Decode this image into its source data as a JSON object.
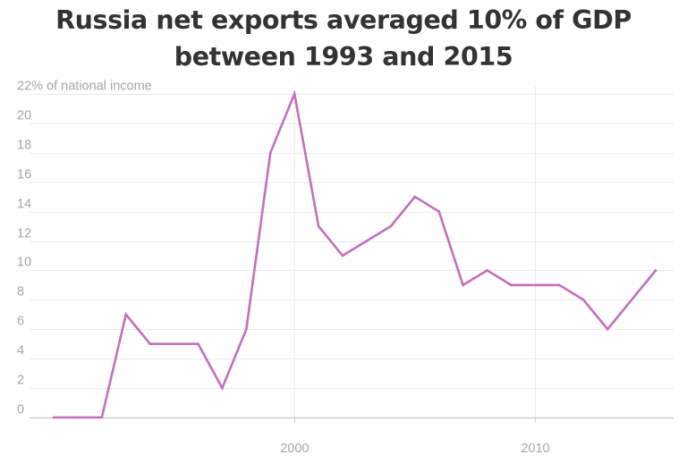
{
  "chart_data": {
    "type": "line",
    "title": "Russia net exports averaged 10% of GDP between 1993 and 2015",
    "xlabel": "",
    "ylabel": "% of national income",
    "top_tick_label": "22% of national income",
    "y_tick_values": [
      0,
      2,
      4,
      6,
      8,
      10,
      12,
      14,
      16,
      18,
      20,
      22
    ],
    "y_tick_labels": [
      "0",
      "2",
      "4",
      "6",
      "8",
      "10",
      "12",
      "14",
      "16",
      "18",
      "20"
    ],
    "x_tick_values": [
      2000,
      2010
    ],
    "x_tick_labels": [
      "2000",
      "2010"
    ],
    "xlim": [
      1990,
      2016
    ],
    "ylim": [
      0,
      22
    ],
    "grid": true,
    "series": [
      {
        "name": "Net exports",
        "color": "#c36fbf",
        "x": [
          1990,
          1991,
          1992,
          1993,
          1994,
          1995,
          1996,
          1997,
          1998,
          1999,
          2000,
          2001,
          2002,
          2003,
          2004,
          2005,
          2006,
          2007,
          2008,
          2009,
          2010,
          2011,
          2012,
          2013,
          2014,
          2015
        ],
        "y": [
          0,
          0,
          0,
          7,
          5,
          5,
          5,
          2,
          6,
          18,
          22,
          13,
          11,
          12,
          13,
          15,
          14,
          9,
          10,
          9,
          9,
          9,
          8,
          6,
          8,
          10
        ]
      }
    ]
  }
}
